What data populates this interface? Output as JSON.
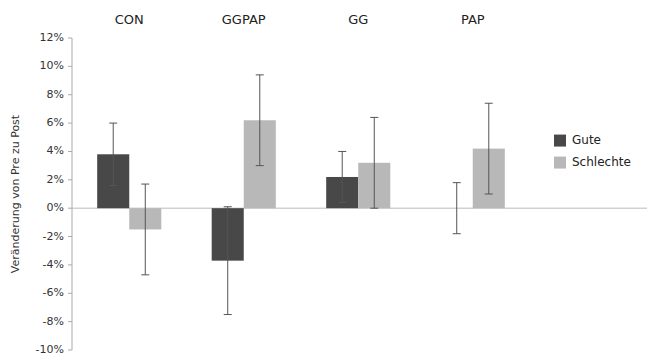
{
  "chart_data": {
    "type": "bar",
    "ylabel": "Veränderung von Pre zu Post",
    "categories": [
      "CON",
      "GGPAP",
      "GG",
      "PAP"
    ],
    "series": [
      {
        "name": "Gute",
        "color": "#484848",
        "values": [
          3.8,
          -3.7,
          2.2,
          0.0
        ],
        "errors": [
          2.2,
          3.8,
          1.8,
          1.8
        ]
      },
      {
        "name": "Schlechte",
        "color": "#b8b8b8",
        "values": [
          -1.5,
          6.2,
          3.2,
          4.2
        ],
        "errors": [
          3.2,
          3.2,
          3.2,
          3.2
        ]
      }
    ],
    "ylim": [
      -10,
      12
    ],
    "yticks": [
      {
        "value": -10,
        "label": "-10%"
      },
      {
        "value": -8,
        "label": "-8%"
      },
      {
        "value": -6,
        "label": "-6%"
      },
      {
        "value": -4,
        "label": "-4%"
      },
      {
        "value": -2,
        "label": "-2%"
      },
      {
        "value": 0,
        "label": "0%"
      },
      {
        "value": 2,
        "label": "2%"
      },
      {
        "value": 4,
        "label": "4%"
      },
      {
        "value": 6,
        "label": "6%"
      },
      {
        "value": 8,
        "label": "8%"
      },
      {
        "value": 10,
        "label": "10%"
      },
      {
        "value": 12,
        "label": "12%"
      }
    ],
    "grid": false,
    "legend": "right"
  }
}
